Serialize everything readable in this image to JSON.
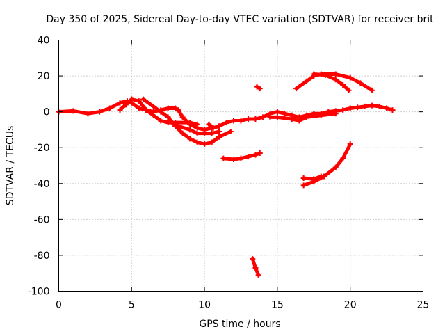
{
  "chart_data": {
    "type": "scatter",
    "title": "Day 350 of 2025, Sidereal Day-to-day VTEC variation (SDTVAR) for receiver brit",
    "xlabel": "GPS time / hours",
    "ylabel": "SDTVAR / TECUs",
    "xlim": [
      0,
      25
    ],
    "ylim": [
      -100,
      40
    ],
    "xticks": [
      0,
      5,
      10,
      15,
      20,
      25
    ],
    "yticks": [
      -100,
      -80,
      -60,
      -40,
      -20,
      0,
      20,
      40
    ],
    "xtick_labels": [
      "0",
      "5",
      "10",
      "15",
      "20",
      "25"
    ],
    "ytick_labels": [
      "-100",
      "-80",
      "-60",
      "-40",
      "-20",
      "0",
      "20",
      "40"
    ],
    "grid": true,
    "marker": "+",
    "color": "#ff0000",
    "series": [
      {
        "name": "trace-1",
        "points": [
          [
            0,
            0
          ],
          [
            1,
            0.5
          ],
          [
            2,
            -1
          ],
          [
            2.8,
            0
          ],
          [
            3.5,
            2
          ],
          [
            4.2,
            5
          ],
          [
            4.7,
            6
          ],
          [
            5,
            5
          ],
          [
            5.5,
            2
          ],
          [
            6,
            1
          ],
          [
            6.5,
            0
          ],
          [
            7,
            1
          ],
          [
            7.5,
            2
          ],
          [
            8,
            2
          ]
        ]
      },
      {
        "name": "trace-2",
        "points": [
          [
            4.2,
            1
          ],
          [
            4.6,
            4
          ],
          [
            5,
            7
          ],
          [
            5.5,
            6
          ],
          [
            6,
            1
          ],
          [
            6.5,
            -2
          ],
          [
            7,
            -5
          ],
          [
            7.5,
            -6
          ],
          [
            8,
            -6
          ],
          [
            9,
            -6
          ],
          [
            9.5,
            -7
          ]
        ]
      },
      {
        "name": "trace-3",
        "points": [
          [
            5.8,
            7
          ],
          [
            6.5,
            3
          ],
          [
            7,
            0
          ],
          [
            7.5,
            -3
          ],
          [
            8,
            -8
          ],
          [
            8.5,
            -12
          ],
          [
            9,
            -15
          ],
          [
            9.5,
            -17
          ],
          [
            10,
            -18
          ],
          [
            10.5,
            -17
          ],
          [
            11,
            -14
          ],
          [
            11.8,
            -11
          ]
        ]
      },
      {
        "name": "trace-4",
        "points": [
          [
            7.5,
            -5
          ],
          [
            8.2,
            -8
          ],
          [
            9,
            -10
          ],
          [
            9.5,
            -12
          ],
          [
            10,
            -12
          ],
          [
            10.5,
            -12
          ],
          [
            11,
            -11
          ]
        ]
      },
      {
        "name": "trace-5",
        "points": [
          [
            8.2,
            1
          ],
          [
            8.5,
            -3
          ],
          [
            9,
            -7
          ],
          [
            9.5,
            -9
          ],
          [
            10,
            -10
          ],
          [
            10.5,
            -9
          ]
        ]
      },
      {
        "name": "trace-6",
        "points": [
          [
            10.3,
            -7
          ],
          [
            10.6,
            -9
          ],
          [
            11,
            -8
          ],
          [
            11.5,
            -6
          ],
          [
            12,
            -5
          ],
          [
            12.5,
            -5
          ],
          [
            13,
            -4
          ],
          [
            13.5,
            -4
          ],
          [
            14,
            -3
          ],
          [
            14.5,
            -1
          ],
          [
            15,
            0
          ],
          [
            15.5,
            -1
          ],
          [
            16,
            -2
          ],
          [
            16.5,
            -3
          ],
          [
            17,
            -2
          ],
          [
            17.5,
            -1
          ],
          [
            18,
            -1
          ],
          [
            18.5,
            0
          ],
          [
            19,
            0.5
          ],
          [
            19.5,
            1
          ],
          [
            20,
            2
          ],
          [
            20.5,
            2.5
          ],
          [
            21,
            3
          ],
          [
            21.5,
            3.5
          ],
          [
            22,
            3
          ],
          [
            22.5,
            2
          ],
          [
            22.9,
            1
          ]
        ]
      },
      {
        "name": "trace-7",
        "points": [
          [
            14.5,
            -3
          ],
          [
            15,
            -3
          ],
          [
            16,
            -4
          ],
          [
            16.5,
            -5
          ],
          [
            17,
            -3
          ],
          [
            18,
            -2
          ],
          [
            19,
            -1
          ]
        ]
      },
      {
        "name": "trace-8",
        "points": [
          [
            11.3,
            -26
          ],
          [
            12,
            -26.5
          ],
          [
            12.5,
            -26
          ],
          [
            13,
            -25
          ],
          [
            13.5,
            -24
          ],
          [
            13.8,
            -23
          ]
        ]
      },
      {
        "name": "trace-9",
        "points": [
          [
            13.6,
            14
          ],
          [
            13.8,
            13
          ]
        ]
      },
      {
        "name": "trace-10",
        "points": [
          [
            16.3,
            13
          ],
          [
            17,
            17
          ],
          [
            17.5,
            20
          ],
          [
            18,
            21
          ],
          [
            19,
            21
          ],
          [
            20,
            19
          ],
          [
            20.7,
            16
          ],
          [
            21.5,
            12
          ]
        ]
      },
      {
        "name": "trace-11",
        "points": [
          [
            17.5,
            21
          ],
          [
            18.3,
            20.5
          ],
          [
            19,
            18
          ],
          [
            19.5,
            15
          ],
          [
            19.9,
            12
          ]
        ]
      },
      {
        "name": "trace-12",
        "points": [
          [
            16.8,
            -41
          ],
          [
            17.5,
            -39
          ],
          [
            18.2,
            -36
          ],
          [
            19,
            -31
          ],
          [
            19.5,
            -26
          ],
          [
            20,
            -18
          ]
        ]
      },
      {
        "name": "trace-13",
        "points": [
          [
            16.8,
            -37
          ],
          [
            17.5,
            -37.5
          ],
          [
            18,
            -36
          ]
        ]
      },
      {
        "name": "trace-14",
        "points": [
          [
            13.3,
            -82
          ],
          [
            13.5,
            -87
          ],
          [
            13.7,
            -91
          ]
        ]
      }
    ]
  }
}
